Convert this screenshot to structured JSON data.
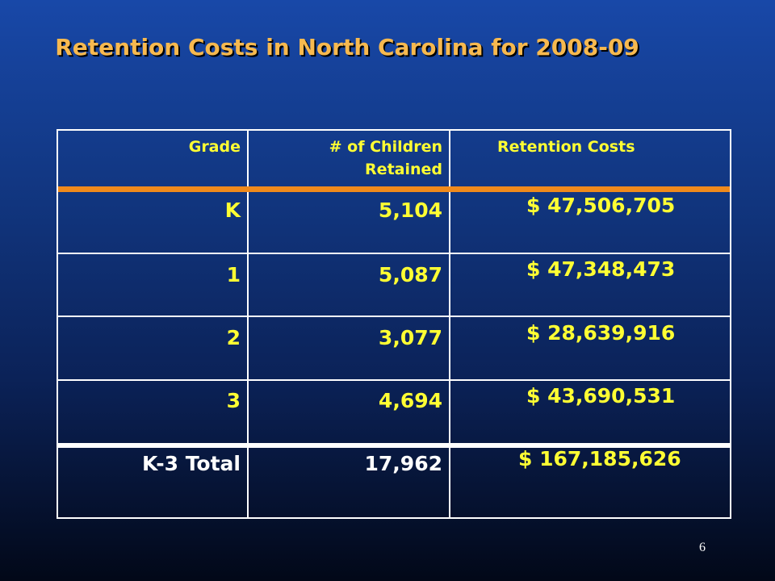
{
  "slide": {
    "title": "Retention Costs in North Carolina for 2008-09",
    "page_number": "6"
  },
  "table": {
    "headers": {
      "grade": "Grade",
      "children_line1": "# of Children",
      "children_line2": "Retained",
      "costs": "Retention Costs"
    },
    "rows": [
      {
        "grade": "K",
        "children": "5,104",
        "cost": "$  47,506,705"
      },
      {
        "grade": "1",
        "children": "5,087",
        "cost": "$  47,348,473"
      },
      {
        "grade": "2",
        "children": "3,077",
        "cost": "$  28,639,916"
      },
      {
        "grade": "3",
        "children": "4,694",
        "cost": "$  43,690,531"
      }
    ],
    "total": {
      "grade": "K-3 Total",
      "children": "17,962",
      "cost": "$ 167,185,626"
    }
  },
  "colors": {
    "title": "#f7b94f",
    "cell_text": "#ffff33",
    "total_text": "#ffffff",
    "header_separator": "#f08a1c",
    "background_top": "#1848a8",
    "background_bottom": "#020818"
  }
}
